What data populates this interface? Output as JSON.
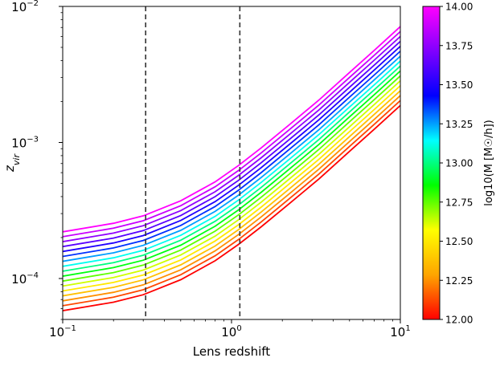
{
  "chart_data": {
    "type": "line",
    "title": "",
    "xlabel": "Lens redshift",
    "ylabel": "z_vir",
    "xscale": "log",
    "yscale": "log",
    "xlim": [
      0.1,
      10
    ],
    "ylim": [
      5e-05,
      0.01
    ],
    "x_ticks": [
      {
        "value": 0.1,
        "base": "10",
        "exp": "−1"
      },
      {
        "value": 1,
        "base": "10",
        "exp": "0"
      },
      {
        "value": 10,
        "base": "10",
        "exp": "1"
      }
    ],
    "y_ticks": [
      {
        "value": 0.0001,
        "base": "10",
        "exp": "−4"
      },
      {
        "value": 0.001,
        "base": "10",
        "exp": "−3"
      },
      {
        "value": 0.01,
        "base": "10",
        "exp": "−2"
      }
    ],
    "vlines": [
      0.31,
      1.12
    ],
    "x": [
      0.1,
      0.2,
      0.3,
      0.5,
      0.8,
      1.1,
      1.5,
      2.2,
      3.3,
      5.0,
      7.0,
      10.0
    ],
    "base_curve": [
      5.8e-05,
      6.7e-05,
      7.6e-05,
      9.8e-05,
      0.000135,
      0.000178,
      0.00024,
      0.000355,
      0.00054,
      0.00086,
      0.00125,
      0.00187
    ],
    "series_logM": [
      12.0,
      12.125,
      12.25,
      12.375,
      12.5,
      12.625,
      12.75,
      12.875,
      13.0,
      13.125,
      13.25,
      13.375,
      13.5,
      13.625,
      13.75,
      13.875,
      14.0
    ],
    "series_offset_dex_per_logM": 0.29,
    "grid": false,
    "legend": "none",
    "colorbar": {
      "label": "log10(M [M☉/h])",
      "min": 12.0,
      "max": 14.0,
      "ticks": [
        "12.00",
        "12.25",
        "12.50",
        "12.75",
        "13.00",
        "13.25",
        "13.50",
        "13.75",
        "14.00"
      ],
      "colormap": "gist_rainbow",
      "colors": [
        "#ff0000",
        "#ffa500",
        "#ffff00",
        "#00ff00",
        "#00ffff",
        "#0000ff",
        "#8000ff",
        "#ff00ff"
      ]
    }
  }
}
